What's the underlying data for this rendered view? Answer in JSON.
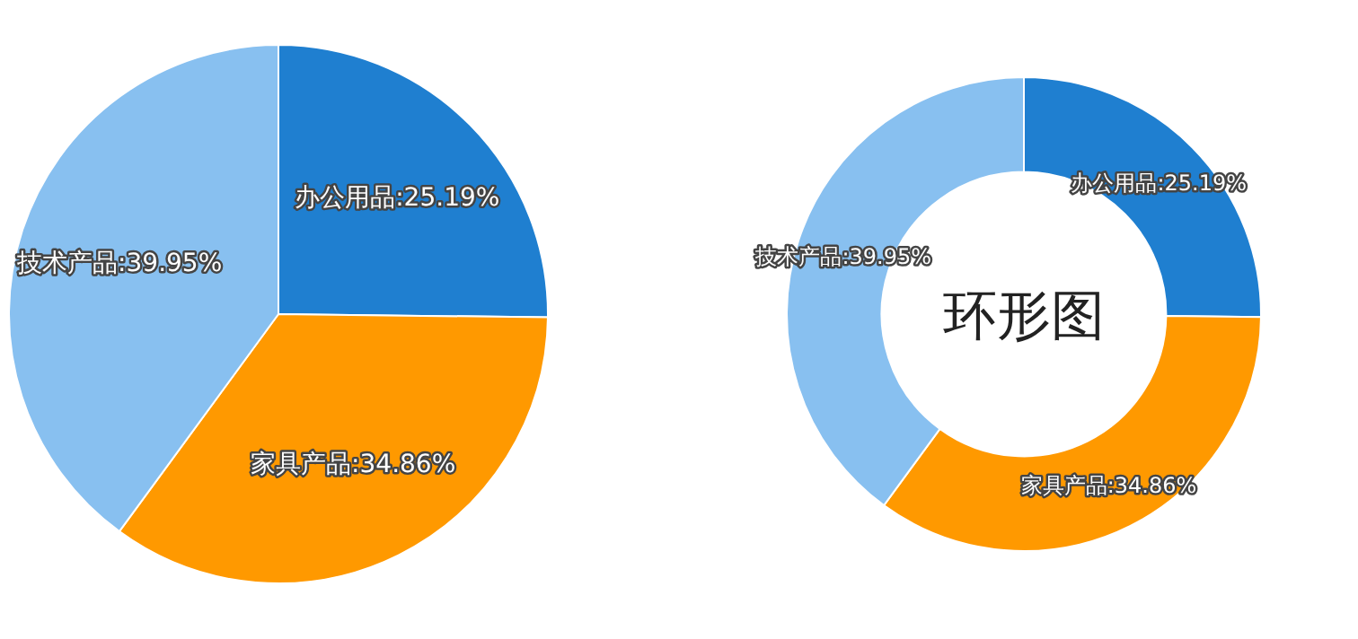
{
  "chart_data": [
    {
      "type": "pie",
      "categories": [
        "办公用品",
        "家具产品",
        "技术产品"
      ],
      "values": [
        25.19,
        34.86,
        39.95
      ],
      "colors": [
        "#1f7fd0",
        "#ff9900",
        "#88c0f0"
      ],
      "value_labels": [
        ":25.19%",
        ":34.86%",
        ":39.95%"
      ]
    },
    {
      "type": "donut",
      "title": "环形图",
      "categories": [
        "办公用品",
        "家具产品",
        "技术产品"
      ],
      "values": [
        25.19,
        34.86,
        39.95
      ],
      "colors": [
        "#1f7fd0",
        "#ff9900",
        "#88c0f0"
      ],
      "value_labels": [
        ":25.19%",
        ":34.86%",
        ":39.95%"
      ]
    }
  ]
}
